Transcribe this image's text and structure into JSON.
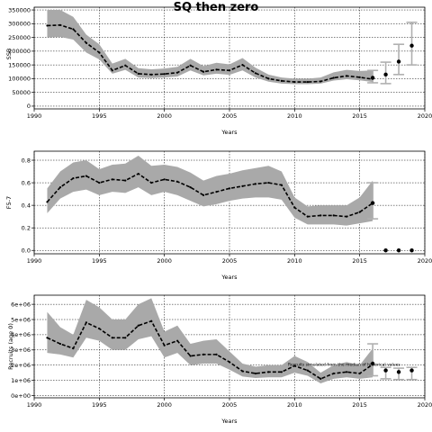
{
  "title": "SQ then zero",
  "chart_data": [
    {
      "type": "line",
      "title": "SQ then zero",
      "xlabel": "Years",
      "ylabel": "SSB",
      "xlim": [
        1990,
        2020
      ],
      "ylim": [
        -10000,
        360000
      ],
      "x_ticks": [
        1990,
        1995,
        2000,
        2005,
        2010,
        2015,
        2020
      ],
      "y_ticks": [
        0,
        50000,
        100000,
        150000,
        200000,
        250000,
        300000,
        350000
      ],
      "y_tick_labels": [
        "0",
        "50000",
        "100000",
        "150000",
        "200000",
        "250000",
        "300000",
        "350000"
      ],
      "grid": true,
      "hist_x": [
        1991,
        1992,
        1993,
        1994,
        1995,
        1996,
        1997,
        1998,
        1999,
        2000,
        2001,
        2002,
        2003,
        2004,
        2005,
        2006,
        2007,
        2008,
        2009,
        2010,
        2011,
        2012,
        2013,
        2014,
        2015,
        2016
      ],
      "median": [
        293000,
        295000,
        280000,
        230000,
        195000,
        130000,
        148000,
        118000,
        115000,
        117000,
        122000,
        148000,
        125000,
        133000,
        130000,
        150000,
        120000,
        100000,
        92000,
        88000,
        88000,
        90000,
        103000,
        110000,
        105000,
        98000
      ],
      "lower": [
        250000,
        252000,
        242000,
        195000,
        170000,
        118000,
        132000,
        104000,
        102000,
        104000,
        108000,
        130000,
        112000,
        118000,
        114000,
        130000,
        104000,
        89000,
        82000,
        80000,
        80000,
        82000,
        93000,
        98000,
        94000,
        88000
      ],
      "upper": [
        350000,
        350000,
        325000,
        260000,
        225000,
        155000,
        172000,
        138000,
        134000,
        137000,
        143000,
        172000,
        146000,
        158000,
        152000,
        175000,
        140000,
        115000,
        104000,
        100000,
        100000,
        104000,
        123000,
        132000,
        128000,
        130000
      ],
      "proj_x": [
        2016,
        2017,
        2018,
        2019
      ],
      "proj_point": [
        103000,
        115000,
        162000,
        220000
      ],
      "proj_low": [
        85000,
        82000,
        115000,
        150000
      ],
      "proj_high": [
        130000,
        160000,
        225000,
        305000
      ]
    },
    {
      "type": "line",
      "xlabel": "Years",
      "ylabel": "F5-7",
      "xlim": [
        1990,
        2020
      ],
      "ylim": [
        -0.03,
        0.88
      ],
      "x_ticks": [
        1990,
        1995,
        2000,
        2005,
        2010,
        2015,
        2020
      ],
      "y_ticks": [
        0.0,
        0.2,
        0.4,
        0.6,
        0.8
      ],
      "y_tick_labels": [
        "0.0",
        "0.2",
        "0.4",
        "0.6",
        "0.8"
      ],
      "grid": true,
      "hist_x": [
        1991,
        1992,
        1993,
        1994,
        1995,
        1996,
        1997,
        1998,
        1999,
        2000,
        2001,
        2002,
        2003,
        2004,
        2005,
        2006,
        2007,
        2008,
        2009,
        2010,
        2011,
        2012,
        2013,
        2014,
        2015,
        2016
      ],
      "median": [
        0.43,
        0.56,
        0.64,
        0.66,
        0.6,
        0.63,
        0.62,
        0.68,
        0.6,
        0.63,
        0.61,
        0.56,
        0.49,
        0.52,
        0.55,
        0.57,
        0.59,
        0.6,
        0.58,
        0.38,
        0.3,
        0.31,
        0.31,
        0.3,
        0.34,
        0.42
      ],
      "lower": [
        0.33,
        0.46,
        0.52,
        0.54,
        0.49,
        0.52,
        0.51,
        0.56,
        0.49,
        0.52,
        0.49,
        0.44,
        0.39,
        0.41,
        0.44,
        0.46,
        0.47,
        0.47,
        0.45,
        0.29,
        0.23,
        0.23,
        0.23,
        0.22,
        0.24,
        0.26
      ],
      "upper": [
        0.55,
        0.7,
        0.78,
        0.8,
        0.72,
        0.76,
        0.77,
        0.84,
        0.75,
        0.76,
        0.74,
        0.69,
        0.62,
        0.66,
        0.68,
        0.71,
        0.73,
        0.75,
        0.7,
        0.47,
        0.39,
        0.4,
        0.4,
        0.4,
        0.47,
        0.62
      ],
      "proj_x": [
        2016,
        2017,
        2018,
        2019
      ],
      "proj_point": [
        0.42,
        0.0,
        0.0,
        0.0
      ],
      "proj_low": [
        0.28,
        null,
        null,
        null
      ],
      "proj_high": [
        0.6,
        null,
        null,
        null
      ]
    },
    {
      "type": "line",
      "xlabel": "Years",
      "ylabel": "Recruits (age 0)",
      "xlim": [
        1990,
        2020
      ],
      "ylim": [
        -150000,
        6600000
      ],
      "x_ticks": [
        1990,
        1995,
        2000,
        2005,
        2010,
        2015,
        2020
      ],
      "y_ticks": [
        0,
        1000000,
        2000000,
        3000000,
        4000000,
        5000000,
        6000000
      ],
      "y_tick_labels": [
        "0e+00",
        "1e+06",
        "2e+06",
        "3e+06",
        "4e+06",
        "5e+06",
        "6e+06"
      ],
      "grid": true,
      "hist_x": [
        1991,
        1992,
        1993,
        1994,
        1995,
        1996,
        1997,
        1998,
        1999,
        2000,
        2001,
        2002,
        2003,
        2004,
        2005,
        2006,
        2007,
        2008,
        2009,
        2010,
        2011,
        2012,
        2013,
        2014,
        2015,
        2016
      ],
      "median": [
        3800000,
        3400000,
        3100000,
        4800000,
        4400000,
        3800000,
        3800000,
        4600000,
        4900000,
        3300000,
        3600000,
        2600000,
        2700000,
        2700000,
        2200000,
        1600000,
        1450000,
        1550000,
        1550000,
        1950000,
        1650000,
        1100000,
        1450000,
        1550000,
        1450000,
        2050000
      ],
      "lower": [
        2800000,
        2700000,
        2500000,
        3800000,
        3600000,
        3000000,
        3000000,
        3700000,
        3900000,
        2500000,
        2800000,
        2000000,
        2100000,
        2100000,
        1700000,
        1250000,
        1150000,
        1200000,
        1200000,
        1500000,
        1300000,
        800000,
        1100000,
        1200000,
        1100000,
        1200000
      ],
      "upper": [
        5500000,
        4500000,
        4000000,
        6300000,
        5800000,
        5000000,
        5000000,
        6000000,
        6400000,
        4200000,
        4600000,
        3400000,
        3600000,
        3700000,
        2900000,
        2100000,
        1900000,
        2000000,
        2000000,
        2600000,
        2200000,
        1500000,
        2000000,
        2200000,
        2000000,
        3100000
      ],
      "proj_x": [
        2016,
        2017,
        2018,
        2019
      ],
      "proj_point": [
        2100000,
        1650000,
        1550000,
        1650000
      ],
      "proj_low": [
        1300000,
        1100000,
        1050000,
        1050000
      ],
      "proj_high": [
        3400000,
        1850000,
        1800000,
        1850000
      ],
      "annotation": "Recruits simulated from the median of historical values"
    }
  ]
}
